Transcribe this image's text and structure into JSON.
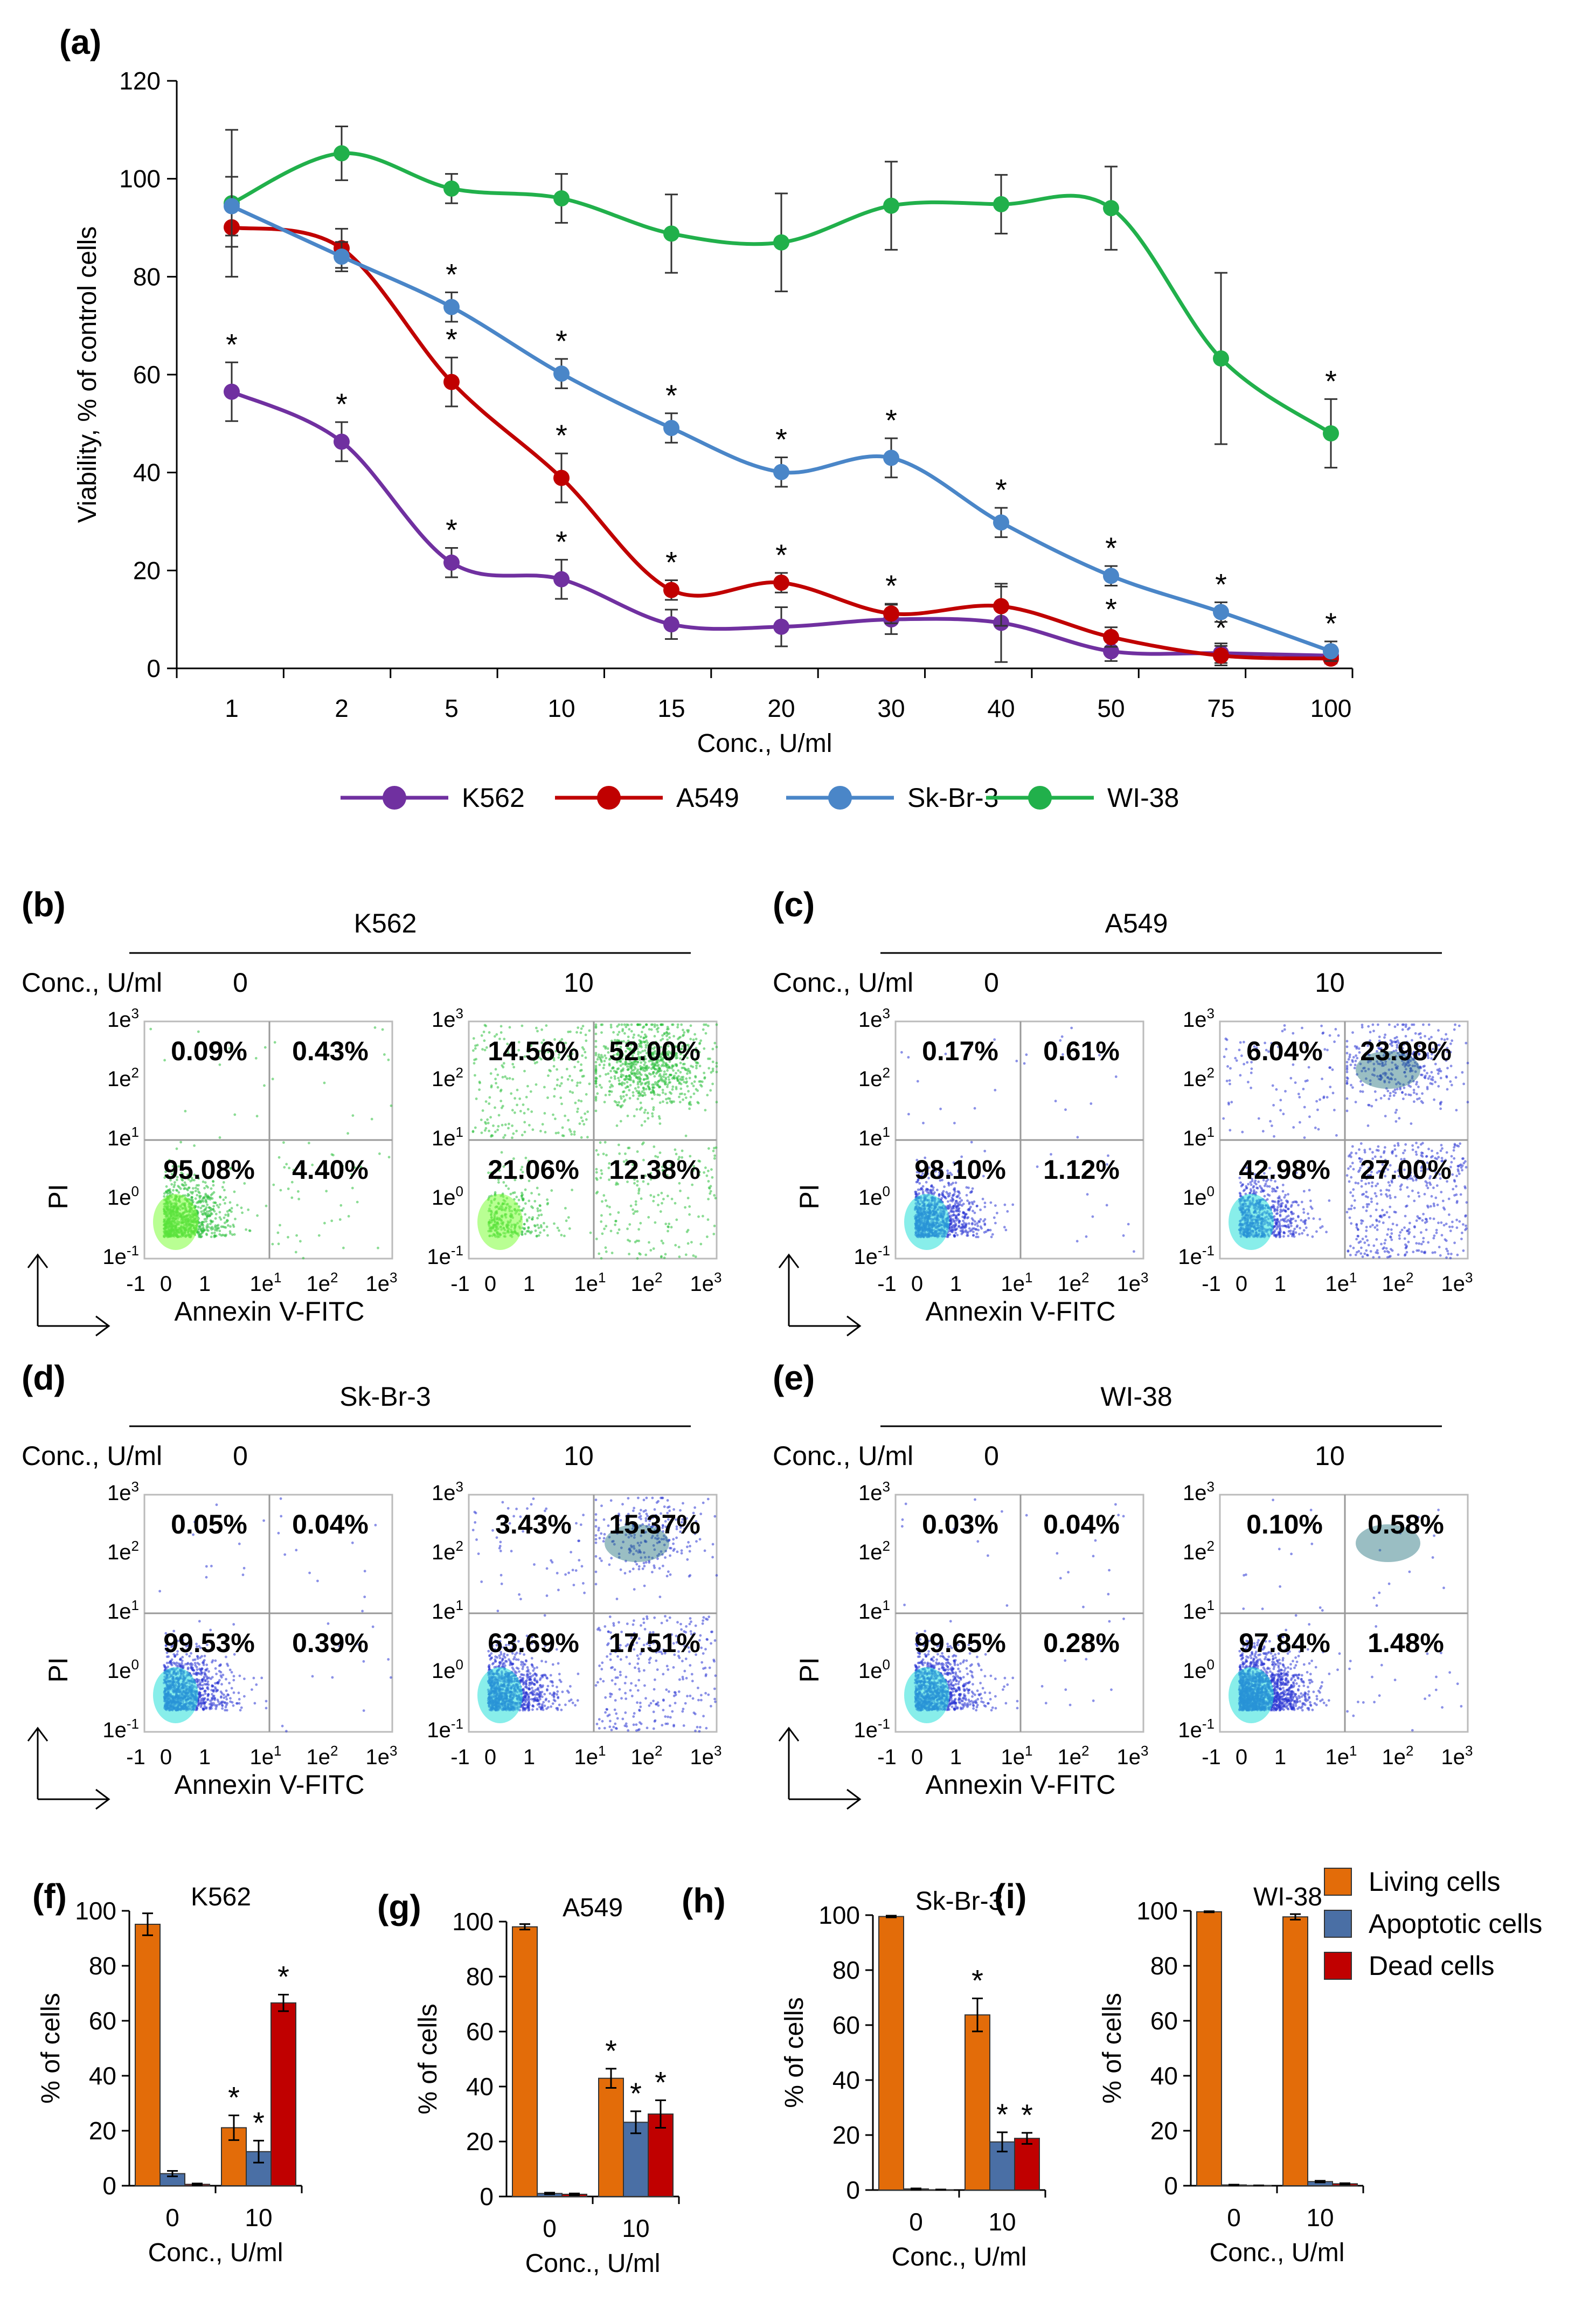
{
  "chart_data": [
    {
      "panel": "(a)",
      "type": "line",
      "xlabel": "Conc., U/ml",
      "ylabel": "Viability, % of control cells",
      "categories": [
        "1",
        "2",
        "5",
        "10",
        "15",
        "20",
        "30",
        "40",
        "50",
        "75",
        "100"
      ],
      "ylim": [
        0,
        120
      ],
      "yticks": [
        "0",
        "20",
        "40",
        "60",
        "80",
        "100",
        "120"
      ],
      "significance_marker": "*",
      "series": [
        {
          "name": "K562",
          "color": "#7030a0",
          "values": [
            56.5,
            46.3,
            21.6,
            18.2,
            9.0,
            8.5,
            10.0,
            9.3,
            3.5,
            3.1,
            2.6
          ],
          "errors": [
            6,
            4,
            3,
            4,
            3,
            4,
            3,
            8,
            2,
            2,
            1.5
          ],
          "stars": [
            true,
            true,
            true,
            true,
            false,
            false,
            false,
            false,
            false,
            false,
            false
          ]
        },
        {
          "name": "A549",
          "color": "#c00000",
          "values": [
            90.1,
            85.8,
            58.5,
            38.9,
            16.0,
            17.5,
            11.2,
            12.7,
            6.4,
            2.6,
            2.0
          ],
          "errors": [
            4,
            4,
            5,
            5,
            2,
            2,
            2,
            4,
            2,
            2,
            1
          ],
          "stars": [
            false,
            false,
            true,
            true,
            true,
            true,
            true,
            false,
            true,
            true,
            false
          ]
        },
        {
          "name": "Sk-Br-3",
          "color": "#4a86c8",
          "values": [
            94.4,
            84.1,
            73.8,
            60.2,
            49.1,
            40.1,
            43.0,
            29.8,
            18.9,
            11.5,
            3.5
          ],
          "errors": [
            6,
            3,
            3,
            3,
            3,
            3,
            4,
            3,
            2,
            2,
            2
          ],
          "stars": [
            false,
            false,
            true,
            true,
            true,
            true,
            true,
            true,
            true,
            true,
            true
          ]
        },
        {
          "name": "WI-38",
          "color": "#21b04b",
          "values": [
            95.0,
            105.2,
            98.0,
            96.0,
            88.8,
            87.0,
            94.5,
            94.8,
            94.0,
            63.3,
            48.0
          ],
          "errors": [
            15,
            5.5,
            3,
            5,
            8,
            10,
            9,
            6,
            8.5,
            17.5,
            7
          ],
          "stars": [
            false,
            false,
            false,
            false,
            false,
            false,
            false,
            false,
            false,
            false,
            true
          ]
        }
      ]
    },
    {
      "type": "flow-cytometry",
      "xlabel": "Annexin V-FITC",
      "ylabel": "PI",
      "conc_label": "Conc., U/ml",
      "x_ticks": [
        {
          "b": "-1"
        },
        {
          "b": "0"
        },
        {
          "b": "1"
        },
        {
          "b": "1e",
          "s": "1"
        },
        {
          "b": "1e",
          "s": "2"
        },
        {
          "b": "1e",
          "s": "3"
        }
      ],
      "y_ticks": [
        {
          "b": "1e",
          "s": "-1"
        },
        {
          "b": "1e",
          "s": "0"
        },
        {
          "b": "1e",
          "s": "1"
        },
        {
          "b": "1e",
          "s": "2"
        },
        {
          "b": "1e",
          "s": "3"
        }
      ],
      "panels": [
        {
          "label": "(b)",
          "cell_line": "K562",
          "dot_color": "#2bbf3c",
          "plots": [
            {
              "conc": "0",
              "ul": "0.09%",
              "ur": "0.43%",
              "ll": "95.08%",
              "lr": "4.40%"
            },
            {
              "conc": "10",
              "ul": "14.56%",
              "ur": "52.00%",
              "ll": "21.06%",
              "lr": "12.38%"
            }
          ]
        },
        {
          "label": "(c)",
          "cell_line": "A549",
          "dot_color": "#2a34d4",
          "plots": [
            {
              "conc": "0",
              "ul": "0.17%",
              "ur": "0.61%",
              "ll": "98.10%",
              "lr": "1.12%"
            },
            {
              "conc": "10",
              "ul": "6.04%",
              "ur": "23.98%",
              "ll": "42.98%",
              "lr": "27.00%"
            }
          ]
        },
        {
          "label": "(d)",
          "cell_line": "Sk-Br-3",
          "dot_color": "#2a34d4",
          "plots": [
            {
              "conc": "0",
              "ul": "0.05%",
              "ur": "0.04%",
              "ll": "99.53%",
              "lr": "0.39%"
            },
            {
              "conc": "10",
              "ul": "3.43%",
              "ur": "15.37%",
              "ll": "63.69%",
              "lr": "17.51%"
            }
          ]
        },
        {
          "label": "(e)",
          "cell_line": "WI-38",
          "dot_color": "#2a34d4",
          "plots": [
            {
              "conc": "0",
              "ul": "0.03%",
              "ur": "0.04%",
              "ll": "99.65%",
              "lr": "0.28%"
            },
            {
              "conc": "10",
              "ul": "0.10%",
              "ur": "0.58%",
              "ll": "97.84%",
              "lr": "1.48%"
            }
          ]
        }
      ]
    },
    {
      "type": "bar",
      "ylabel": "% of cells",
      "xlabel": "Conc., U/ml",
      "categories": [
        "0",
        "10"
      ],
      "ylim": [
        0,
        100
      ],
      "yticks": [
        "0",
        "20",
        "40",
        "60",
        "80",
        "100"
      ],
      "legend": [
        {
          "name": "Living cells",
          "color": "#e36c09"
        },
        {
          "name": "Apoptotic cells",
          "color": "#4a6fa5"
        },
        {
          "name": "Dead cells",
          "color": "#c00000"
        }
      ],
      "panels": [
        {
          "label": "(f)",
          "title": "K562",
          "values": [
            [
              95.1,
              4.4,
              0.5
            ],
            [
              21.1,
              12.4,
              66.5
            ]
          ],
          "errors": [
            [
              4,
              1,
              0.3
            ],
            [
              4.5,
              4,
              3
            ]
          ],
          "stars": [
            [
              false,
              false,
              false
            ],
            [
              true,
              true,
              true
            ]
          ]
        },
        {
          "label": "(g)",
          "title": "A549",
          "values": [
            [
              98.1,
              1.1,
              0.8
            ],
            [
              43.0,
              27.0,
              30.0
            ]
          ],
          "errors": [
            [
              1,
              0.3,
              0.3
            ],
            [
              3.5,
              4,
              5
            ]
          ],
          "stars": [
            [
              false,
              false,
              false
            ],
            [
              true,
              true,
              true
            ]
          ]
        },
        {
          "label": "(h)",
          "title": "Sk-Br-3",
          "values": [
            [
              99.5,
              0.4,
              0.1
            ],
            [
              63.7,
              17.5,
              18.8
            ]
          ],
          "errors": [
            [
              0.3,
              0.2,
              0.1
            ],
            [
              6,
              3.5,
              2
            ]
          ],
          "stars": [
            [
              false,
              false,
              false
            ],
            [
              true,
              true,
              true
            ]
          ]
        },
        {
          "label": "(i)",
          "title": "WI-38",
          "values": [
            [
              99.65,
              0.28,
              0.07
            ],
            [
              97.8,
              1.5,
              0.7
            ]
          ],
          "errors": [
            [
              0.2,
              0.1,
              0.05
            ],
            [
              1,
              0.3,
              0.2
            ]
          ],
          "stars": [
            [
              false,
              false,
              false
            ],
            [
              false,
              false,
              false
            ]
          ]
        }
      ]
    }
  ]
}
